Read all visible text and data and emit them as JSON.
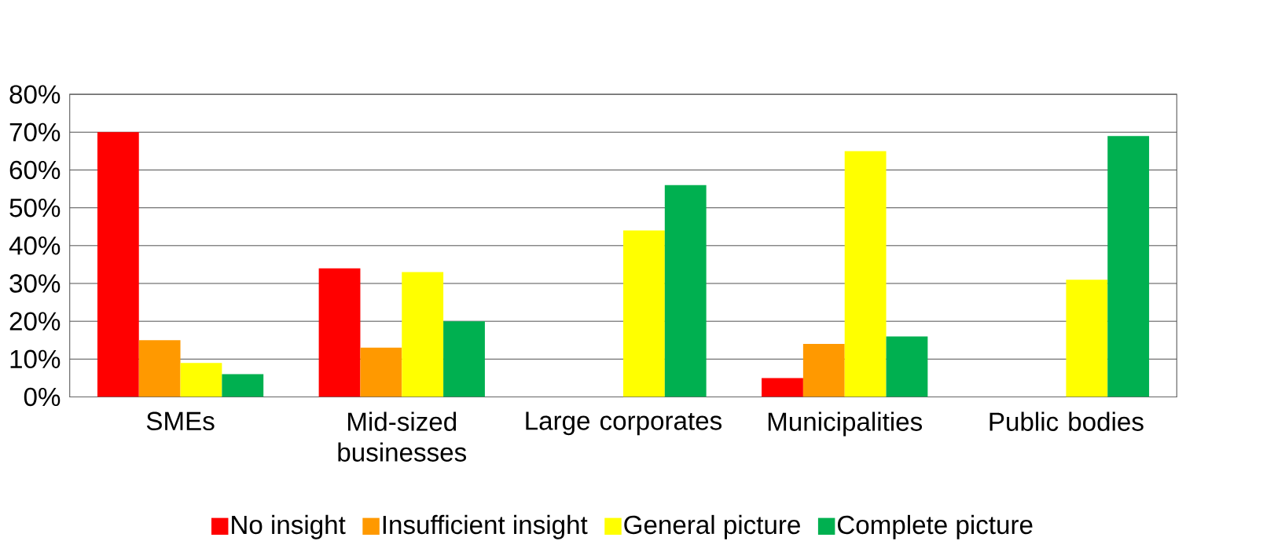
{
  "chart_data": {
    "type": "bar",
    "categories": [
      "SMEs",
      "Mid-sized businesses",
      "Large corporates",
      "Municipalities",
      "Public bodies"
    ],
    "series": [
      {
        "name": "No insight",
        "color": "#ff0000",
        "values": [
          70,
          34,
          0,
          5,
          0
        ]
      },
      {
        "name": "Insufficient insight",
        "color": "#ff9900",
        "values": [
          15,
          13,
          0,
          14,
          0
        ]
      },
      {
        "name": "General picture",
        "color": "#ffff00",
        "values": [
          9,
          33,
          44,
          65,
          31
        ]
      },
      {
        "name": "Complete picture",
        "color": "#00b050",
        "values": [
          6,
          20,
          56,
          16,
          69
        ]
      }
    ],
    "ylim": [
      0,
      80
    ],
    "yticks": [
      {
        "value": 0,
        "label": "0%"
      },
      {
        "value": 10,
        "label": "10%"
      },
      {
        "value": 20,
        "label": "20%"
      },
      {
        "value": 30,
        "label": "30%"
      },
      {
        "value": 40,
        "label": "40%"
      },
      {
        "value": 50,
        "label": "50%"
      },
      {
        "value": 60,
        "label": "60%"
      },
      {
        "value": 70,
        "label": "70%"
      },
      {
        "value": 80,
        "label": "80%"
      }
    ],
    "grid": "y",
    "legend": "bottom"
  }
}
